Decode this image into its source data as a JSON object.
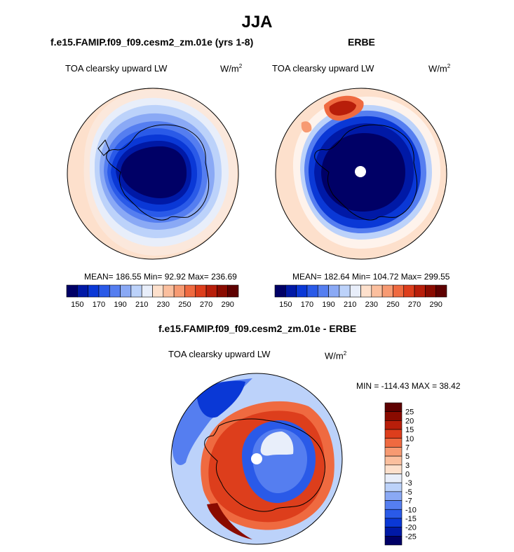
{
  "main_title": "JJA",
  "chart_data": [
    {
      "type": "heatmap",
      "projection": "south-polar-stereographic",
      "title": "f.e15.FAMIP.f09_f09.cesm2_zm.01e (yrs 1-8)",
      "variable": "TOA clearsky upward LW",
      "units_base": "W/m",
      "units_exp": "2",
      "stats": "MEAN= 186.55  Min=  92.92  Max= 236.69",
      "mean": 186.55,
      "min": 92.92,
      "max": 236.69,
      "colorbar": {
        "orientation": "horizontal",
        "levels": [
          150,
          160,
          170,
          180,
          190,
          200,
          210,
          220,
          230,
          240,
          250,
          260,
          270,
          280,
          290
        ],
        "tick_labels": [
          "150",
          "170",
          "190",
          "210",
          "230",
          "250",
          "270",
          "290"
        ]
      }
    },
    {
      "type": "heatmap",
      "projection": "south-polar-stereographic",
      "title": "ERBE",
      "variable": "TOA clearsky upward LW",
      "units_base": "W/m",
      "units_exp": "2",
      "stats": "MEAN= 182.64  Min= 104.72  Max= 299.55",
      "mean": 182.64,
      "min": 104.72,
      "max": 299.55,
      "colorbar": {
        "orientation": "horizontal",
        "levels": [
          150,
          160,
          170,
          180,
          190,
          200,
          210,
          220,
          230,
          240,
          250,
          260,
          270,
          280,
          290
        ],
        "tick_labels": [
          "150",
          "170",
          "190",
          "210",
          "230",
          "250",
          "270",
          "290"
        ]
      }
    },
    {
      "type": "heatmap",
      "projection": "south-polar-stereographic",
      "title": "f.e15.FAMIP.f09_f09.cesm2_zm.01e - ERBE",
      "variable": "TOA clearsky upward LW",
      "units_base": "W/m",
      "units_exp": "2",
      "stats": "MIN = -114.43  MAX =  38.42",
      "min": -114.43,
      "max": 38.42,
      "colorbar": {
        "orientation": "vertical",
        "levels": [
          25,
          20,
          15,
          10,
          7,
          5,
          3,
          0,
          -3,
          -5,
          -7,
          -10,
          -15,
          -20,
          -25
        ],
        "tick_labels": [
          "25",
          "20",
          "15",
          "10",
          "7",
          "5",
          "3",
          "0",
          "-3",
          "-5",
          "-7",
          "-10",
          "-15",
          "-20",
          "-25"
        ]
      }
    }
  ],
  "colors": {
    "scale": [
      "#000066",
      "#0019a6",
      "#0a38d6",
      "#2a5ae8",
      "#557ef0",
      "#8aa9f5",
      "#bcd2fa",
      "#e8eefa",
      "#fde0cc",
      "#fbbf9e",
      "#f79a72",
      "#ef6a40",
      "#dd3e1c",
      "#b81e0a",
      "#8a0b00",
      "#5e0000"
    ],
    "coast": "#000000"
  }
}
